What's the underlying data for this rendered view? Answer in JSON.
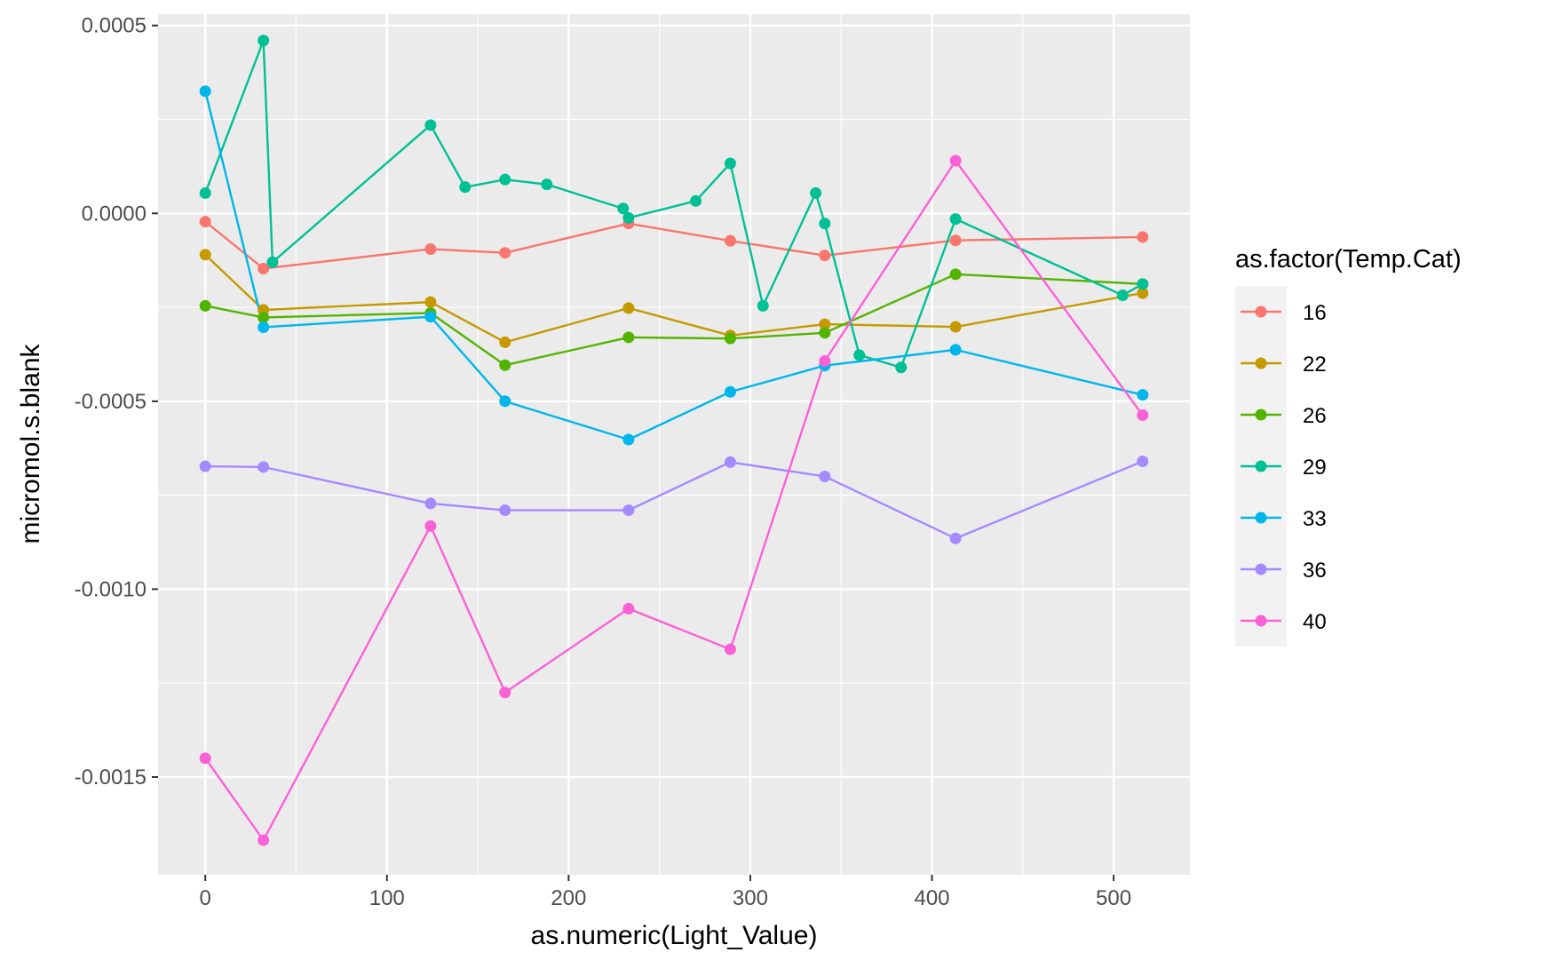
{
  "chart_data": {
    "type": "line",
    "xlabel": "as.numeric(Light_Value)",
    "ylabel": "micromol.s.blank",
    "xlim": [
      -26,
      542
    ],
    "ylim": [
      -0.00176,
      0.00053
    ],
    "x_ticks": [
      0,
      100,
      200,
      300,
      400,
      500
    ],
    "x_tick_labels": [
      "0",
      "100",
      "200",
      "300",
      "400",
      "500"
    ],
    "y_ticks": [
      0.0005,
      0.0,
      -0.0005,
      -0.001,
      -0.0015
    ],
    "y_tick_labels": [
      "0.0005",
      "0.0000",
      "-0.0005",
      "-0.0010",
      "-0.0015"
    ],
    "grid": true,
    "legend": {
      "title": "as.factor(Temp.Cat)",
      "position": "right"
    },
    "series": [
      {
        "name": "16",
        "color": "#F8766D",
        "points": [
          [
            0,
            -2.2e-05
          ],
          [
            32,
            -0.000147
          ],
          [
            124,
            -9.5e-05
          ],
          [
            165,
            -0.000105
          ],
          [
            233,
            -2.7e-05
          ],
          [
            289,
            -7.3e-05
          ],
          [
            341,
            -0.000112
          ],
          [
            413,
            -7.2e-05
          ],
          [
            516,
            -6.3e-05
          ]
        ]
      },
      {
        "name": "22",
        "color": "#C49A00",
        "points": [
          [
            0,
            -0.00011
          ],
          [
            32,
            -0.000257
          ],
          [
            124,
            -0.000236
          ],
          [
            165,
            -0.000343
          ],
          [
            233,
            -0.000252
          ],
          [
            289,
            -0.000325
          ],
          [
            341,
            -0.000295
          ],
          [
            413,
            -0.000302
          ],
          [
            516,
            -0.000212
          ]
        ]
      },
      {
        "name": "26",
        "color": "#53B400",
        "points": [
          [
            0,
            -0.000246
          ],
          [
            32,
            -0.000277
          ],
          [
            124,
            -0.000265
          ],
          [
            165,
            -0.000404
          ],
          [
            233,
            -0.00033
          ],
          [
            289,
            -0.000333
          ],
          [
            341,
            -0.000318
          ],
          [
            413,
            -0.000162
          ],
          [
            516,
            -0.000188
          ]
        ]
      },
      {
        "name": "29",
        "color": "#00C094",
        "points": [
          [
            0,
            5.4e-05
          ],
          [
            32,
            0.00046
          ],
          [
            37,
            -0.00013
          ],
          [
            124,
            0.000235
          ],
          [
            143,
            7e-05
          ],
          [
            165,
            9e-05
          ],
          [
            188,
            7.7e-05
          ],
          [
            230,
            1.3e-05
          ],
          [
            233,
            -1.2e-05
          ],
          [
            270,
            3.3e-05
          ],
          [
            289,
            0.000133
          ],
          [
            307,
            -0.000246
          ],
          [
            336,
            5.4e-05
          ],
          [
            341,
            -2.7e-05
          ],
          [
            360,
            -0.000377
          ],
          [
            383,
            -0.00041
          ],
          [
            413,
            -1.5e-05
          ],
          [
            505,
            -0.000218
          ],
          [
            516,
            -0.000188
          ]
        ]
      },
      {
        "name": "33",
        "color": "#00B6EB",
        "points": [
          [
            0,
            0.000325
          ],
          [
            32,
            -0.000303
          ],
          [
            124,
            -0.000275
          ],
          [
            165,
            -0.0005
          ],
          [
            233,
            -0.000602
          ],
          [
            289,
            -0.000475
          ],
          [
            341,
            -0.000405
          ],
          [
            413,
            -0.000363
          ],
          [
            516,
            -0.000483
          ]
        ]
      },
      {
        "name": "36",
        "color": "#A58AFF",
        "points": [
          [
            0,
            -0.000673
          ],
          [
            32,
            -0.000675
          ],
          [
            124,
            -0.000772
          ],
          [
            165,
            -0.00079
          ],
          [
            233,
            -0.00079
          ],
          [
            289,
            -0.000662
          ],
          [
            341,
            -0.0007
          ],
          [
            413,
            -0.000865
          ],
          [
            516,
            -0.00066
          ]
        ]
      },
      {
        "name": "40",
        "color": "#FB61D7",
        "points": [
          [
            0,
            -0.00145
          ],
          [
            32,
            -0.001668
          ],
          [
            124,
            -0.000832
          ],
          [
            165,
            -0.001275
          ],
          [
            233,
            -0.001052
          ],
          [
            289,
            -0.00116
          ],
          [
            341,
            -0.000393
          ],
          [
            413,
            0.00014
          ],
          [
            516,
            -0.000537
          ]
        ]
      }
    ]
  }
}
